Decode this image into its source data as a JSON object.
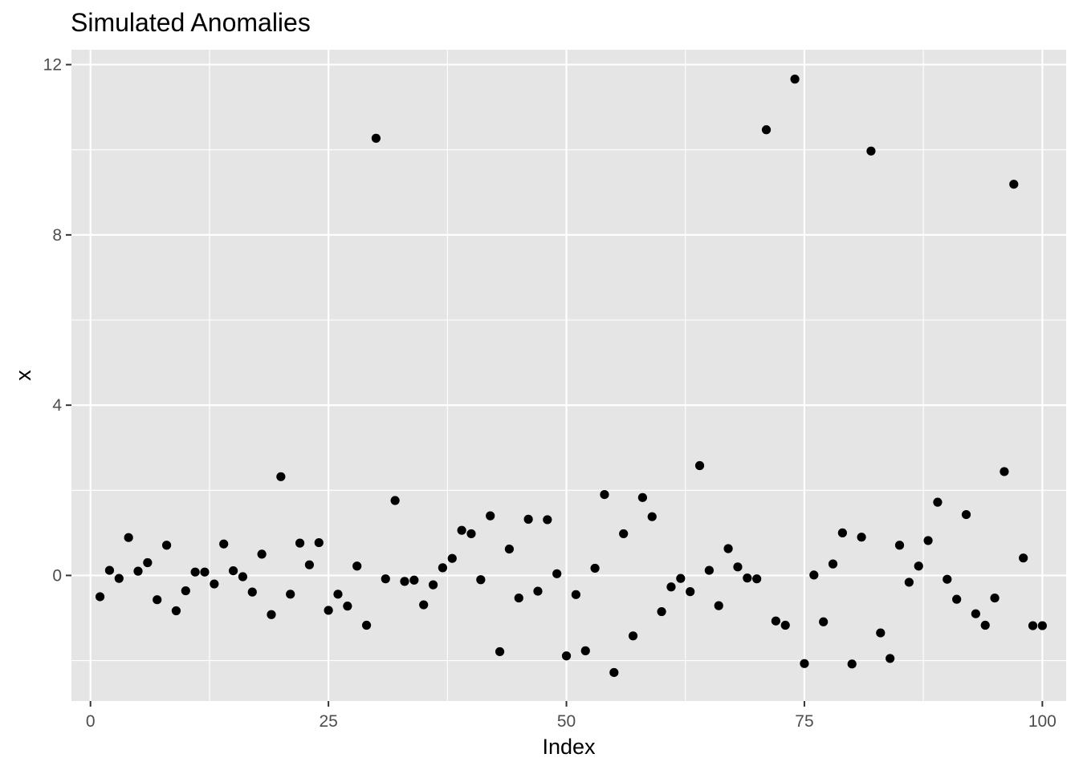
{
  "chart_data": {
    "type": "scatter",
    "title": "Simulated Anomalies",
    "xlabel": "Index",
    "ylabel": "x",
    "xlim": [
      -2,
      102.5
    ],
    "ylim": [
      -2.95,
      12.35
    ],
    "x_ticks": [
      0,
      25,
      50,
      75,
      100
    ],
    "x_tick_labels": [
      "0",
      "25",
      "50",
      "75",
      "100"
    ],
    "y_ticks": [
      0,
      4,
      8,
      12
    ],
    "y_tick_labels": [
      "0",
      "4",
      "8",
      "12"
    ],
    "x_minor_ticks": [
      12.5,
      37.5,
      62.5,
      87.5
    ],
    "y_minor_ticks": [
      -2,
      2,
      6,
      10
    ],
    "grid": true,
    "legend": "none",
    "colors": {
      "panel": "#e5e5e5",
      "grid": "#ffffff",
      "point": "#000000",
      "tick": "#333333"
    },
    "x": [
      1,
      2,
      3,
      4,
      5,
      6,
      7,
      8,
      9,
      10,
      11,
      12,
      13,
      14,
      15,
      16,
      17,
      18,
      19,
      20,
      21,
      22,
      23,
      24,
      25,
      26,
      27,
      28,
      29,
      30,
      31,
      32,
      33,
      34,
      35,
      36,
      37,
      38,
      39,
      40,
      41,
      42,
      43,
      44,
      45,
      46,
      47,
      48,
      49,
      50,
      51,
      52,
      53,
      54,
      55,
      56,
      57,
      58,
      59,
      60,
      61,
      62,
      63,
      64,
      65,
      66,
      67,
      68,
      69,
      70,
      71,
      72,
      73,
      74,
      75,
      76,
      77,
      78,
      79,
      80,
      81,
      82,
      83,
      84,
      85,
      86,
      87,
      88,
      89,
      90,
      91,
      92,
      93,
      94,
      95,
      96,
      97,
      98,
      99,
      100
    ],
    "y": [
      -0.5,
      0.12,
      -0.07,
      0.89,
      0.1,
      0.3,
      -0.57,
      0.71,
      -0.83,
      -0.36,
      0.08,
      0.08,
      -0.2,
      0.74,
      0.11,
      -0.03,
      -0.39,
      0.5,
      -0.92,
      2.32,
      -0.44,
      0.76,
      0.25,
      0.77,
      -0.82,
      -0.44,
      -0.72,
      0.22,
      -1.17,
      10.27,
      -0.08,
      1.76,
      -0.14,
      -0.11,
      -0.69,
      -0.22,
      0.18,
      0.4,
      1.06,
      0.98,
      -0.1,
      1.4,
      -1.79,
      0.62,
      -0.53,
      1.32,
      -0.37,
      1.31,
      0.04,
      -1.89,
      -0.45,
      -1.77,
      0.17,
      1.9,
      -2.28,
      0.98,
      -1.42,
      1.83,
      1.38,
      -0.85,
      -0.27,
      -0.07,
      -0.38,
      2.58,
      0.12,
      -0.71,
      0.63,
      0.2,
      -0.06,
      -0.08,
      10.47,
      -1.07,
      -1.17,
      11.66,
      -2.07,
      0.01,
      -1.09,
      0.27,
      1.0,
      -2.08,
      0.9,
      9.97,
      -1.35,
      -1.95,
      0.71,
      -0.16,
      0.22,
      0.82,
      1.72,
      -0.09,
      -0.56,
      1.43,
      -0.9,
      -1.17,
      -0.53,
      2.44,
      9.19,
      0.41,
      -1.18,
      -1.18
    ]
  }
}
